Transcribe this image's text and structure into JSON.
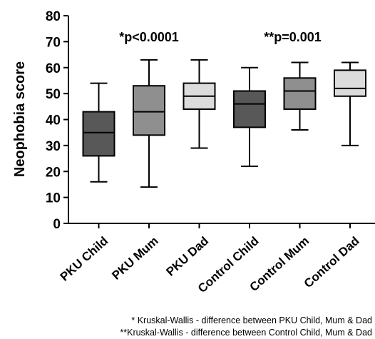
{
  "chart_data": {
    "type": "boxplot",
    "ylabel": "Neophobia score",
    "ylim": [
      0,
      80
    ],
    "yticks": [
      0,
      10,
      20,
      30,
      40,
      50,
      60,
      70,
      80
    ],
    "categories": [
      "PKU Child",
      "PKU Mum",
      "PKU Dad",
      "Control Child",
      "Control Mum",
      "Control Dad"
    ],
    "boxes": [
      {
        "min": 16,
        "q1": 26,
        "median": 35,
        "q3": 43,
        "max": 54
      },
      {
        "min": 14,
        "q1": 34,
        "median": 43,
        "q3": 53,
        "max": 63
      },
      {
        "min": 29,
        "q1": 44,
        "median": 49,
        "q3": 54,
        "max": 63
      },
      {
        "min": 22,
        "q1": 37,
        "median": 46,
        "q3": 51,
        "max": 60
      },
      {
        "min": 36,
        "q1": 44,
        "median": 51,
        "q3": 56,
        "max": 62
      },
      {
        "min": 30,
        "q1": 49,
        "median": 52,
        "q3": 59,
        "max": 62
      }
    ],
    "box_colors": [
      "#585858",
      "#8f8f8f",
      "#dcdcdc",
      "#585858",
      "#8f8f8f",
      "#dcdcdc"
    ],
    "annotations": [
      "*p<0.0001",
      "**p=0.001"
    ],
    "footnotes": [
      "* Kruskal-Wallis - difference between PKU Child, Mum & Dad",
      "**Kruskal-Wallis - difference between Control Child, Mum & Dad"
    ]
  }
}
